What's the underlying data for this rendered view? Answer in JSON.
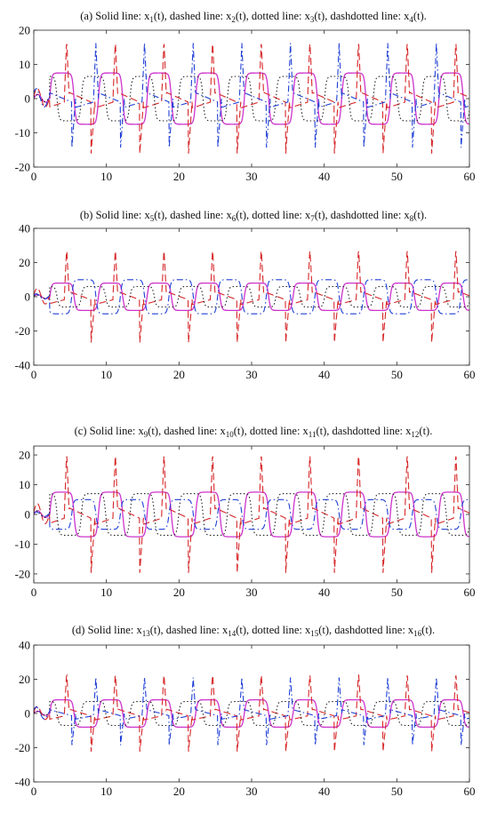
{
  "chart_data": [
    {
      "type": "line",
      "title": {
        "prefix": "(a) Solid line: ",
        "parts": [
          [
            "x",
            "1"
          ],
          [
            "x",
            "2"
          ],
          [
            "x",
            "3"
          ],
          [
            "x",
            "4"
          ]
        ]
      },
      "xlim": [
        0,
        60
      ],
      "ylim": [
        -20,
        20
      ],
      "xticks": [
        0,
        10,
        20,
        30,
        40,
        50,
        60
      ],
      "yticks": [
        -20,
        -10,
        0,
        10,
        20
      ],
      "series": [
        {
          "style": "solid",
          "color": "#cc33cc",
          "amp": 7.5,
          "spikes": false,
          "phase": 0
        },
        {
          "style": "dashed",
          "color": "#d62728",
          "amp": 18,
          "spikes": true,
          "phase": 0.15
        },
        {
          "style": "dotted",
          "color": "#222222",
          "amp": 6.5,
          "spikes": false,
          "phase": 0.35
        },
        {
          "style": "dashdotted",
          "color": "#1f3fd6",
          "amp": 17,
          "spikes": true,
          "phase": 0.55
        }
      ]
    },
    {
      "type": "line",
      "title": {
        "prefix": "(b) Solid line: ",
        "parts": [
          [
            "x",
            "5"
          ],
          [
            "x",
            "6"
          ],
          [
            "x",
            "7"
          ],
          [
            "x",
            "8"
          ]
        ]
      },
      "xlim": [
        0,
        60
      ],
      "ylim": [
        -40,
        40
      ],
      "xticks": [
        0,
        10,
        20,
        30,
        40,
        50,
        60
      ],
      "yticks": [
        -40,
        -20,
        0,
        20,
        40
      ],
      "series": [
        {
          "style": "solid",
          "color": "#cc33cc",
          "amp": 8,
          "spikes": false,
          "phase": 0
        },
        {
          "style": "dashed",
          "color": "#d62728",
          "amp": 30,
          "spikes": true,
          "phase": 0.15
        },
        {
          "style": "dotted",
          "color": "#222222",
          "amp": 6,
          "spikes": false,
          "phase": 0.35
        },
        {
          "style": "dashdotted",
          "color": "#1f3fd6",
          "amp": 10,
          "spikes": false,
          "phase": 0.55
        }
      ]
    },
    {
      "type": "line",
      "title": {
        "prefix": "(c) Solid line: ",
        "parts": [
          [
            "x",
            "9"
          ],
          [
            "x",
            "10"
          ],
          [
            "x",
            "11"
          ],
          [
            "x",
            "12"
          ]
        ]
      },
      "xlim": [
        0,
        60
      ],
      "ylim": [
        -23,
        23
      ],
      "xticks": [
        0,
        10,
        20,
        30,
        40,
        50,
        60
      ],
      "yticks": [
        -20,
        -10,
        0,
        10,
        20
      ],
      "series": [
        {
          "style": "solid",
          "color": "#cc33cc",
          "amp": 7.5,
          "spikes": false,
          "phase": 0
        },
        {
          "style": "dashed",
          "color": "#d62728",
          "amp": 22,
          "spikes": true,
          "phase": 0.15
        },
        {
          "style": "dotted",
          "color": "#222222",
          "amp": 7,
          "spikes": false,
          "phase": 0.35
        },
        {
          "style": "dashdotted",
          "color": "#1f3fd6",
          "amp": 5,
          "spikes": false,
          "phase": 0.55
        }
      ]
    },
    {
      "type": "line",
      "title": {
        "prefix": "(d) Solid line: ",
        "parts": [
          [
            "x",
            "13"
          ],
          [
            "x",
            "14"
          ],
          [
            "x",
            "15"
          ],
          [
            "x",
            "16"
          ]
        ]
      },
      "xlim": [
        0,
        60
      ],
      "ylim": [
        -40,
        40
      ],
      "xticks": [
        0,
        10,
        20,
        30,
        40,
        50,
        60
      ],
      "yticks": [
        -40,
        -20,
        0,
        20,
        40
      ],
      "series": [
        {
          "style": "solid",
          "color": "#cc33cc",
          "amp": 8,
          "spikes": false,
          "phase": 0
        },
        {
          "style": "dashed",
          "color": "#d62728",
          "amp": 25,
          "spikes": true,
          "phase": 0.15
        },
        {
          "style": "dotted",
          "color": "#222222",
          "amp": 7,
          "spikes": false,
          "phase": 0.35
        },
        {
          "style": "dashdotted",
          "color": "#1f3fd6",
          "amp": 22,
          "spikes": true,
          "phase": 0.55
        }
      ]
    }
  ],
  "title_labels": [
    "dashed line: ",
    "dotted line: ",
    "dashdotted line: "
  ],
  "period": 6.7
}
